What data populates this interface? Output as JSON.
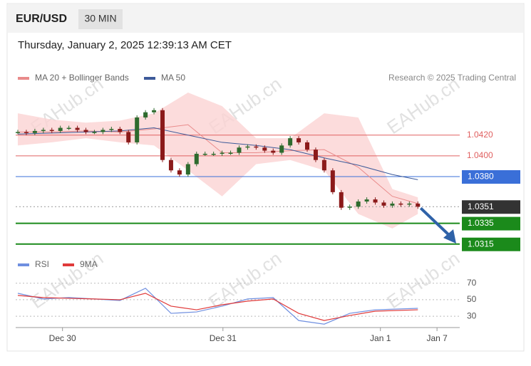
{
  "header": {
    "symbol": "EUR/USD",
    "timeframe": "30 MIN",
    "timestamp": "Thursday, January 2, 2025 12:39:13 AM CET"
  },
  "chart_data": {
    "type": "candlestick",
    "credit": "Research © 2025 Trading Central",
    "watermark": "EAHub.cn",
    "up_color": "#2e6b2e",
    "down_color": "#8b1a1a",
    "ylim": [
      1.031,
      1.0461
    ],
    "xlim": [
      -0.25,
      51.5
    ],
    "xticks": [
      {
        "value": 5.25,
        "label": "Dec 30"
      },
      {
        "value": 24.1,
        "label": "Dec 31"
      },
      {
        "value": 42.6,
        "label": "Jan 1"
      },
      {
        "value": 49.25,
        "label": "Jan 7"
      }
    ],
    "closes": [
      1.0423,
      1.0422,
      1.0424,
      1.0425,
      1.0424,
      1.0427,
      1.0427,
      1.0425,
      1.0423,
      1.0423,
      1.0425,
      1.0426,
      1.0423,
      1.0413,
      1.0437,
      1.0442,
      1.0444,
      1.0396,
      1.0386,
      1.0382,
      1.0392,
      1.0402,
      1.0402,
      1.0402,
      1.0403,
      1.0403,
      1.0408,
      1.0409,
      1.0408,
      1.0405,
      1.0403,
      1.041,
      1.0417,
      1.0413,
      1.0406,
      1.0396,
      1.0386,
      1.0365,
      1.035,
      1.0351,
      1.0356,
      1.0358,
      1.0355,
      1.0352,
      1.0354,
      1.0353,
      1.0354,
      1.0351
    ],
    "series": [
      {
        "name": "MA 20 + Bollinger Bands",
        "color": "#e98b8b",
        "band_color": "#fbd3d3",
        "x": [
          0,
          4,
          8,
          12,
          16,
          20,
          24,
          28,
          32,
          36,
          40,
          44,
          47
        ],
        "values": [
          1.0423,
          1.0423,
          1.0424,
          1.0423,
          1.0426,
          1.043,
          1.0403,
          1.0403,
          1.0405,
          1.0406,
          1.0389,
          1.0361,
          1.0354
        ],
        "upper": [
          1.0441,
          1.0435,
          1.0432,
          1.0434,
          1.0441,
          1.0461,
          1.0448,
          1.0417,
          1.0417,
          1.0441,
          1.0437,
          1.0368,
          1.036
        ],
        "lower": [
          1.041,
          1.0413,
          1.0417,
          1.0413,
          1.041,
          1.0386,
          1.0361,
          1.0392,
          1.0396,
          1.0386,
          1.0344,
          1.033,
          1.0344
        ]
      },
      {
        "name": "MA 50",
        "color": "#3d5a99",
        "x": [
          0,
          4,
          8,
          12,
          16,
          20,
          24,
          28,
          32,
          36,
          40,
          44,
          47
        ],
        "values": [
          1.0421,
          1.0422,
          1.0423,
          1.0424,
          1.0427,
          1.042,
          1.0413,
          1.041,
          1.0406,
          1.0398,
          1.0391,
          1.0382,
          1.0377
        ]
      }
    ],
    "levels": [
      {
        "value": 1.042,
        "label": "1.0420",
        "color": "#e06060",
        "style": "text"
      },
      {
        "value": 1.04,
        "label": "1.0400",
        "color": "#e06060",
        "style": "text"
      },
      {
        "value": 1.038,
        "label": "1.0380",
        "color": "#3a6fd8",
        "style": "box"
      },
      {
        "value": 1.0351,
        "label": "1.0351",
        "color": "#333333",
        "style": "dotted"
      },
      {
        "value": 1.0335,
        "label": "1.0335",
        "color": "#1b8a1b",
        "style": "box"
      },
      {
        "value": 1.0315,
        "label": "1.0315",
        "color": "#1b8a1b",
        "style": "box"
      }
    ],
    "rsi": {
      "ylim": [
        18,
        81
      ],
      "yticks": [
        30,
        50,
        70
      ],
      "x": [
        0,
        3,
        6,
        9,
        12,
        15,
        18,
        21,
        24,
        27,
        30,
        33,
        36,
        39,
        42,
        47
      ],
      "series": [
        {
          "name": "RSI",
          "color": "#6f8fe0",
          "values": [
            57.8,
            50.9,
            52.6,
            50.9,
            49.1,
            63.9,
            33.5,
            35.2,
            42.2,
            50.9,
            52.6,
            24.8,
            20.4,
            33.5,
            37.8,
            39.6
          ]
        },
        {
          "name": "9MA",
          "color": "#e03a3a",
          "values": [
            55.2,
            52.6,
            51.7,
            50.9,
            50,
            57.8,
            42.2,
            37.8,
            43.9,
            48.3,
            50.9,
            33.5,
            24.8,
            30.9,
            36.1,
            37.8
          ]
        }
      ]
    }
  }
}
